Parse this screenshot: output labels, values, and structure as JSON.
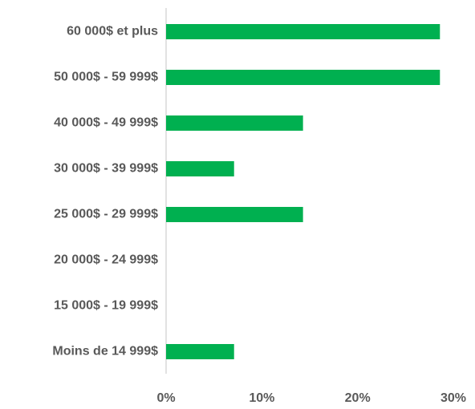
{
  "chart_data": {
    "type": "bar",
    "orientation": "horizontal",
    "categories": [
      "60 000$ et plus",
      "50 000$ - 59 999$",
      "40 000$ - 49 999$",
      "30 000$ - 39 999$",
      "25 000$ - 29 999$",
      "20 000$ - 24 999$",
      "15 000$ - 19 999$",
      "Moins de 14 999$"
    ],
    "values": [
      28.6,
      28.6,
      14.3,
      7.1,
      14.3,
      0,
      0,
      7.1
    ],
    "color": "#00b050",
    "xlim": [
      0,
      30
    ],
    "xticks": [
      {
        "value": 0,
        "label": "0%"
      },
      {
        "value": 10,
        "label": "10%"
      },
      {
        "value": 20,
        "label": "20%"
      },
      {
        "value": 30,
        "label": "30%"
      }
    ],
    "grid": false
  }
}
